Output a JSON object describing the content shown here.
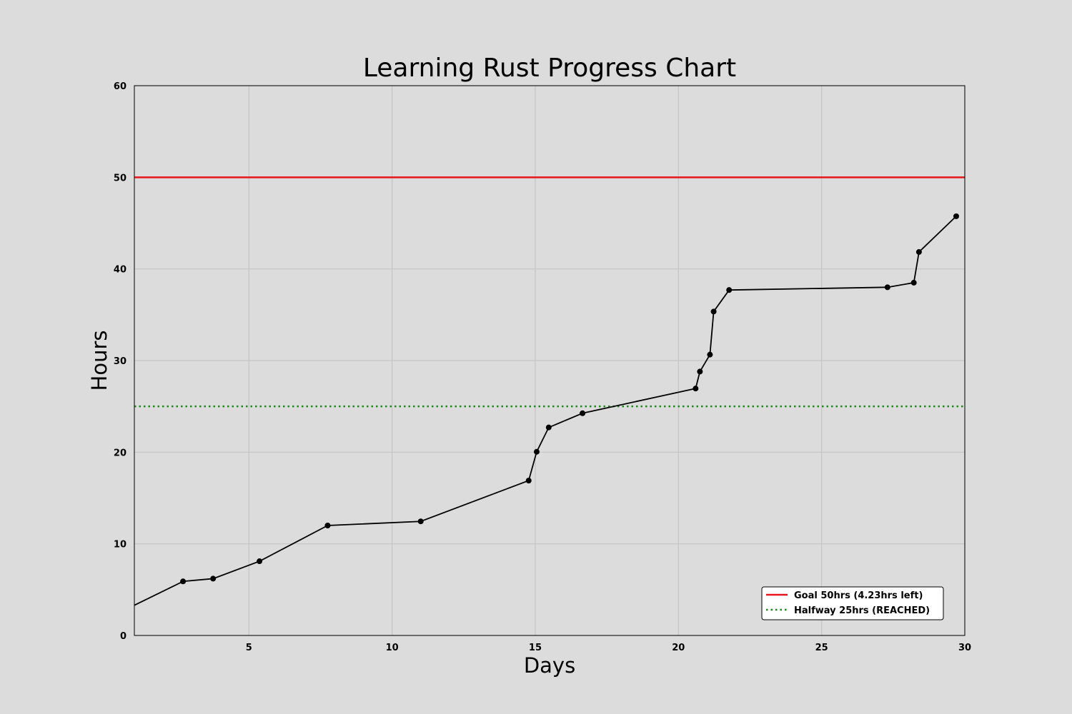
{
  "chart_data": {
    "type": "line",
    "title": "Learning Rust Progress Chart",
    "xlabel": "Days",
    "ylabel": "Hours",
    "xlim": [
      1,
      30
    ],
    "ylim": [
      0,
      60
    ],
    "xticks": [
      5,
      10,
      15,
      20,
      25,
      30
    ],
    "yticks": [
      0,
      10,
      20,
      30,
      40,
      50,
      60
    ],
    "grid": true,
    "background": "#dcdcdc",
    "series": [
      {
        "color": "#000000",
        "x": [
          1.0,
          2.7,
          3.75,
          5.37,
          7.75,
          11.0,
          14.77,
          15.05,
          15.47,
          16.65,
          20.6,
          20.75,
          21.1,
          21.23,
          21.77,
          27.3,
          28.22,
          28.4,
          29.7
        ],
        "y": [
          3.3,
          5.9,
          6.2,
          8.1,
          12.0,
          12.45,
          16.9,
          20.05,
          22.7,
          24.25,
          26.95,
          28.8,
          30.65,
          35.35,
          37.7,
          38.0,
          38.5,
          41.85,
          45.75
        ]
      }
    ],
    "reference_lines": [
      {
        "label": "Goal 50hrs (4.23hrs left)",
        "y": 50,
        "color": "#e8141b",
        "style": "solid"
      },
      {
        "label": "Halfway 25hrs (REACHED)",
        "y": 25,
        "color": "#1a8a1a",
        "style": "dotted"
      }
    ],
    "legend_position": "bottom-right"
  }
}
